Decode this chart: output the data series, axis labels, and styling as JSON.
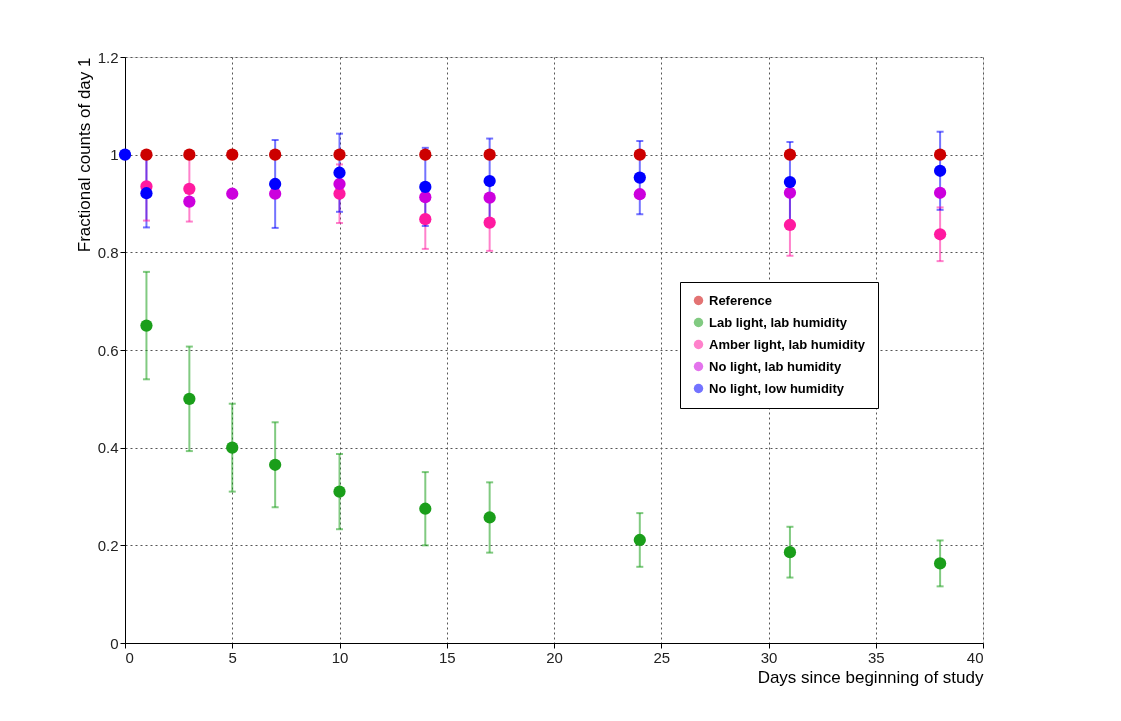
{
  "chart_data": {
    "type": "scatter",
    "xlabel": "Days since beginning of study",
    "ylabel": "Fractional counts of day 1",
    "x": [
      0,
      1,
      3,
      5,
      7,
      10,
      14,
      17,
      24,
      31,
      38
    ],
    "xlim": [
      0,
      40
    ],
    "xticks": [
      0,
      5,
      10,
      15,
      20,
      25,
      30,
      35,
      40
    ],
    "ylim": [
      0,
      1.2
    ],
    "yticks": [
      0,
      0.2,
      0.4,
      0.6,
      0.8,
      1,
      1.2
    ],
    "grid": true,
    "legend": "right",
    "marker": "circle",
    "series": [
      {
        "name": "Reference",
        "color": "#cc0000",
        "values": [
          null,
          1,
          1,
          1,
          1,
          1,
          1,
          1,
          1,
          1,
          1
        ]
      },
      {
        "name": "Lab light, lab humidity",
        "color": "#1a9e1a",
        "values": [
          null,
          0.65,
          0.5,
          0.4,
          0.365,
          0.31,
          0.275,
          0.257,
          0.211,
          0.186,
          0.163
        ],
        "errors": [
          null,
          0.11,
          0.107,
          0.09,
          0.087,
          0.077,
          0.075,
          0.072,
          0.055,
          0.052,
          0.047
        ]
      },
      {
        "name": "Amber light, lab humidity",
        "color": "#ff1aa0",
        "values": [
          null,
          0.935,
          0.93,
          null,
          null,
          0.92,
          0.868,
          0.861,
          null,
          0.856,
          0.837
        ],
        "errors": [
          null,
          0.07,
          0.067,
          null,
          null,
          0.06,
          0.061,
          0.058,
          null,
          0.063,
          0.055
        ]
      },
      {
        "name": "No light, lab humidity",
        "color": "#cc00dd",
        "values": [
          null,
          null,
          0.904,
          0.92,
          0.92,
          0.94,
          0.913,
          0.912,
          0.919,
          0.922,
          0.922
        ]
      },
      {
        "name": "No light, low humidity",
        "color": "#0000ff",
        "values": [
          1,
          0.921,
          null,
          null,
          0.94,
          0.963,
          0.934,
          0.946,
          0.953,
          0.944,
          0.967
        ],
        "errors": [
          null,
          0.07,
          null,
          null,
          0.09,
          0.08,
          0.08,
          0.087,
          0.075,
          0.082,
          0.08
        ]
      }
    ]
  }
}
